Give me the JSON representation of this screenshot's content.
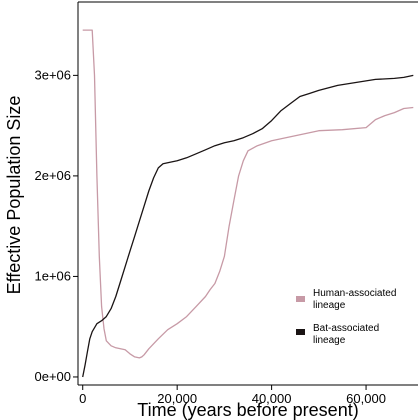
{
  "chart_data": {
    "type": "line",
    "title": "",
    "xlabel": "Time (years before present)",
    "ylabel": "Effective Population Size",
    "xlim": [
      -1000,
      71000
    ],
    "ylim": [
      -80000,
      3700000
    ],
    "x_ticks": [
      0,
      20000,
      40000,
      60000
    ],
    "x_tick_labels": [
      "0",
      "20,000",
      "40,000",
      "60,000"
    ],
    "y_ticks": [
      0,
      1000000,
      2000000,
      3000000
    ],
    "y_tick_labels": [
      "0e+00",
      "1e+06",
      "2e+06",
      "3e+06"
    ],
    "grid": false,
    "legend_position": "center-right",
    "series": [
      {
        "name": "Human-associated lineage",
        "color": "#c79aa6",
        "x": [
          0,
          1000,
          2000,
          2500,
          3000,
          3500,
          4000,
          4500,
          5000,
          6000,
          7000,
          8000,
          9000,
          10000,
          11000,
          12000,
          12500,
          13000,
          14000,
          16000,
          18000,
          20000,
          22000,
          24000,
          26000,
          27000,
          28000,
          29000,
          30000,
          31000,
          32000,
          33000,
          34000,
          35000,
          37000,
          40000,
          45000,
          50000,
          55000,
          60000,
          62000,
          64000,
          66000,
          68000,
          70000
        ],
        "y": [
          3450000,
          3450000,
          3450000,
          3000000,
          2000000,
          1200000,
          700000,
          480000,
          360000,
          310000,
          290000,
          280000,
          270000,
          230000,
          200000,
          190000,
          200000,
          220000,
          280000,
          380000,
          470000,
          530000,
          600000,
          700000,
          800000,
          870000,
          930000,
          1050000,
          1200000,
          1500000,
          1750000,
          2000000,
          2150000,
          2250000,
          2300000,
          2350000,
          2400000,
          2450000,
          2460000,
          2480000,
          2560000,
          2600000,
          2630000,
          2670000,
          2680000
        ]
      },
      {
        "name": "Bat-associated lineage",
        "color": "#1a1414",
        "x": [
          0,
          500,
          1000,
          1500,
          2000,
          3000,
          4000,
          5000,
          6000,
          7000,
          8000,
          9000,
          10000,
          11000,
          12000,
          13000,
          14000,
          15000,
          16000,
          17000,
          18000,
          19000,
          20000,
          22000,
          24000,
          26000,
          28000,
          30000,
          32000,
          34000,
          36000,
          38000,
          40000,
          42000,
          44000,
          46000,
          48000,
          50000,
          54000,
          58000,
          62000,
          66000,
          68000,
          69000,
          70000
        ],
        "y": [
          0,
          120000,
          250000,
          380000,
          450000,
          530000,
          560000,
          600000,
          680000,
          800000,
          950000,
          1100000,
          1250000,
          1400000,
          1550000,
          1700000,
          1850000,
          1980000,
          2080000,
          2120000,
          2130000,
          2140000,
          2150000,
          2180000,
          2220000,
          2260000,
          2300000,
          2330000,
          2350000,
          2380000,
          2420000,
          2470000,
          2550000,
          2650000,
          2720000,
          2790000,
          2820000,
          2850000,
          2900000,
          2930000,
          2960000,
          2970000,
          2980000,
          2990000,
          3000000
        ]
      }
    ]
  }
}
